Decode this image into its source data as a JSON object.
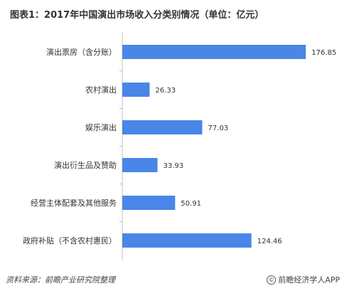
{
  "title": "图表1：2017年中国演出市场收入分类别情况（单位：亿元）",
  "footer": {
    "source": "资料来源：前瞻产业研究院整理",
    "copyright_icon": "copyright-icon",
    "brand": "前瞻经济学人APP"
  },
  "chart_data": {
    "type": "bar",
    "orientation": "horizontal",
    "categories": [
      "演出票房（含分账）",
      "农村演出",
      "娱乐演出",
      "演出衍生品及赞助",
      "经营主体配套及其他服务",
      "政府补贴（不含农村惠民）"
    ],
    "values": [
      176.85,
      26.33,
      77.03,
      33.93,
      50.91,
      124.46
    ],
    "value_labels": [
      "176.85",
      "26.33",
      "77.03",
      "33.93",
      "50.91",
      "124.46"
    ],
    "bar_color": "#4a86e8",
    "xlim": [
      0,
      185
    ],
    "grid": false,
    "legend": "none"
  }
}
